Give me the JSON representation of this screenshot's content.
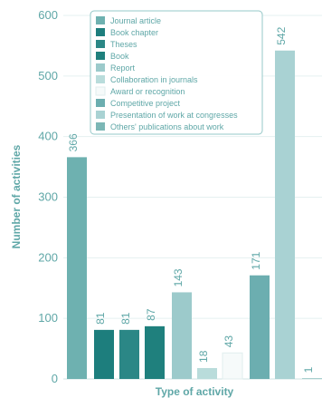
{
  "chart_data": {
    "type": "bar",
    "xlabel": "Type of activity",
    "ylabel": "Number of activities",
    "ylim": [
      0,
      600
    ],
    "yticks": [
      0,
      100,
      200,
      300,
      400,
      500,
      600
    ],
    "grid": true,
    "legend_position": "top-center",
    "categories": [
      "Journal article",
      "Book chapter",
      "Theses",
      "Book",
      "Report",
      "Collaboration in journals",
      "Award or recognition",
      "Competitive project",
      "Presentation of work at congresses",
      "Others' publications about work"
    ],
    "values": [
      366,
      81,
      81,
      87,
      143,
      18,
      43,
      171,
      542,
      1
    ],
    "colors": [
      "#6eb1b0",
      "#1d7e7d",
      "#2b8786",
      "#1f807d",
      "#9ccacb",
      "#b9dcdb",
      "#f6fafa",
      "#6caeb0",
      "#a9d2d3",
      "#7cb7b6"
    ]
  }
}
